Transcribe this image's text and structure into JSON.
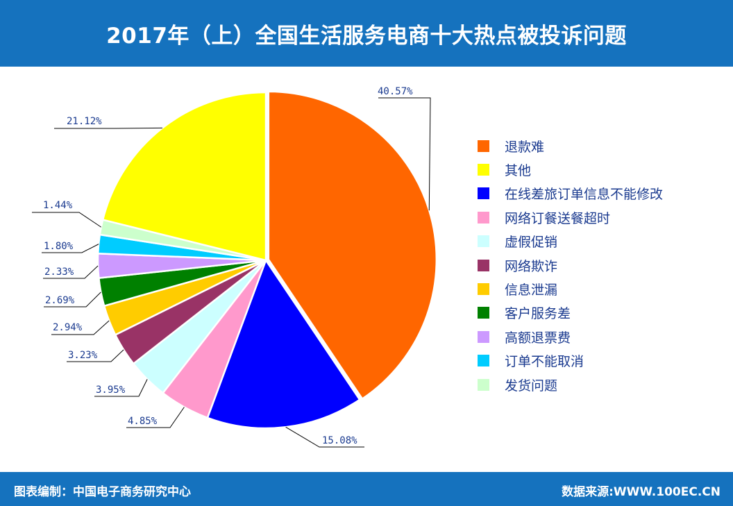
{
  "header": {
    "title": "2017年（上）全国生活服务电商十大热点被投诉问题"
  },
  "footer": {
    "left": "图表编制：中国电子商务研究中心",
    "right": "数据来源:WWW.100EC.CN"
  },
  "chart_data": {
    "type": "pie",
    "slices": [
      {
        "label": "退款难",
        "value": 40.57,
        "value_label": "40.57%",
        "color": "#ff6600"
      },
      {
        "label": "在线差旅订单信息不能修改",
        "value": 15.08,
        "value_label": "15.08%",
        "color": "#0000ff"
      },
      {
        "label": "网络订餐送餐超时",
        "value": 4.85,
        "value_label": "4.85%",
        "color": "#ff99cc"
      },
      {
        "label": "虚假促销",
        "value": 3.95,
        "value_label": "3.95%",
        "color": "#ccffff"
      },
      {
        "label": "网络欺诈",
        "value": 3.23,
        "value_label": "3.23%",
        "color": "#993366"
      },
      {
        "label": "信息泄漏",
        "value": 2.94,
        "value_label": "2.94%",
        "color": "#ffcc00"
      },
      {
        "label": "客户服务差",
        "value": 2.69,
        "value_label": "2.69%",
        "color": "#008000"
      },
      {
        "label": "高额退票费",
        "value": 2.33,
        "value_label": "2.33%",
        "color": "#cc99ff"
      },
      {
        "label": "订单不能取消",
        "value": 1.8,
        "value_label": "1.80%",
        "color": "#00ccff"
      },
      {
        "label": "发货问题",
        "value": 1.44,
        "value_label": "1.44%",
        "color": "#ccffcc"
      },
      {
        "label": "其他",
        "value": 21.12,
        "value_label": "21.12%",
        "color": "#ffff00"
      }
    ],
    "legend_order": [
      "退款难",
      "其他",
      "在线差旅订单信息不能修改",
      "网络订餐送餐超时",
      "虚假促销",
      "网络欺诈",
      "信息泄漏",
      "客户服务差",
      "高额退票费",
      "订单不能取消",
      "发货问题"
    ],
    "legend_position": "right"
  }
}
